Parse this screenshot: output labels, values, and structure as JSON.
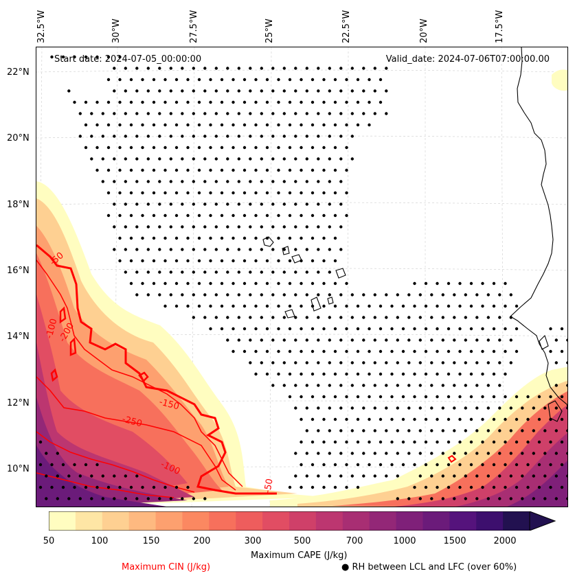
{
  "map": {
    "start_date": "Start date: 2024-07-05_00:00:00",
    "valid_date": "Valid_date: 2024-07-06T07:00:00.00",
    "lon_labels": [
      "32.5°W",
      "30°W",
      "27.5°W",
      "25°W",
      "22.5°W",
      "20°W",
      "17.5°W"
    ],
    "lat_labels": [
      "22°N",
      "20°N",
      "18°N",
      "16°N",
      "14°N",
      "12°N",
      "10°N"
    ],
    "cin_contour_labels": [
      "-50",
      "-100",
      "-200",
      "-150",
      "-250",
      "-100",
      "-50"
    ]
  },
  "colorbar": {
    "ticks": [
      "50",
      "100",
      "150",
      "200",
      "300",
      "500",
      "700",
      "1000",
      "1500",
      "2000"
    ],
    "colors": [
      "#fffdc0",
      "#fee6a5",
      "#fed092",
      "#feb980",
      "#fda06f",
      "#fb8861",
      "#f7705c",
      "#ee5d5d",
      "#e14d63",
      "#cf4069",
      "#bc3670",
      "#a82e73",
      "#932777",
      "#7f2079",
      "#6b1b7a",
      "#55137c",
      "#3d0f6e",
      "#221150"
    ],
    "title": "Maximum CAPE (J/kg)"
  },
  "legend": {
    "cin_label": "Maximum CIN (J/kg)",
    "cin_color": "#ff0000",
    "rh_marker": "●",
    "rh_label": "RH between LCL and LFC (over 60%)"
  }
}
